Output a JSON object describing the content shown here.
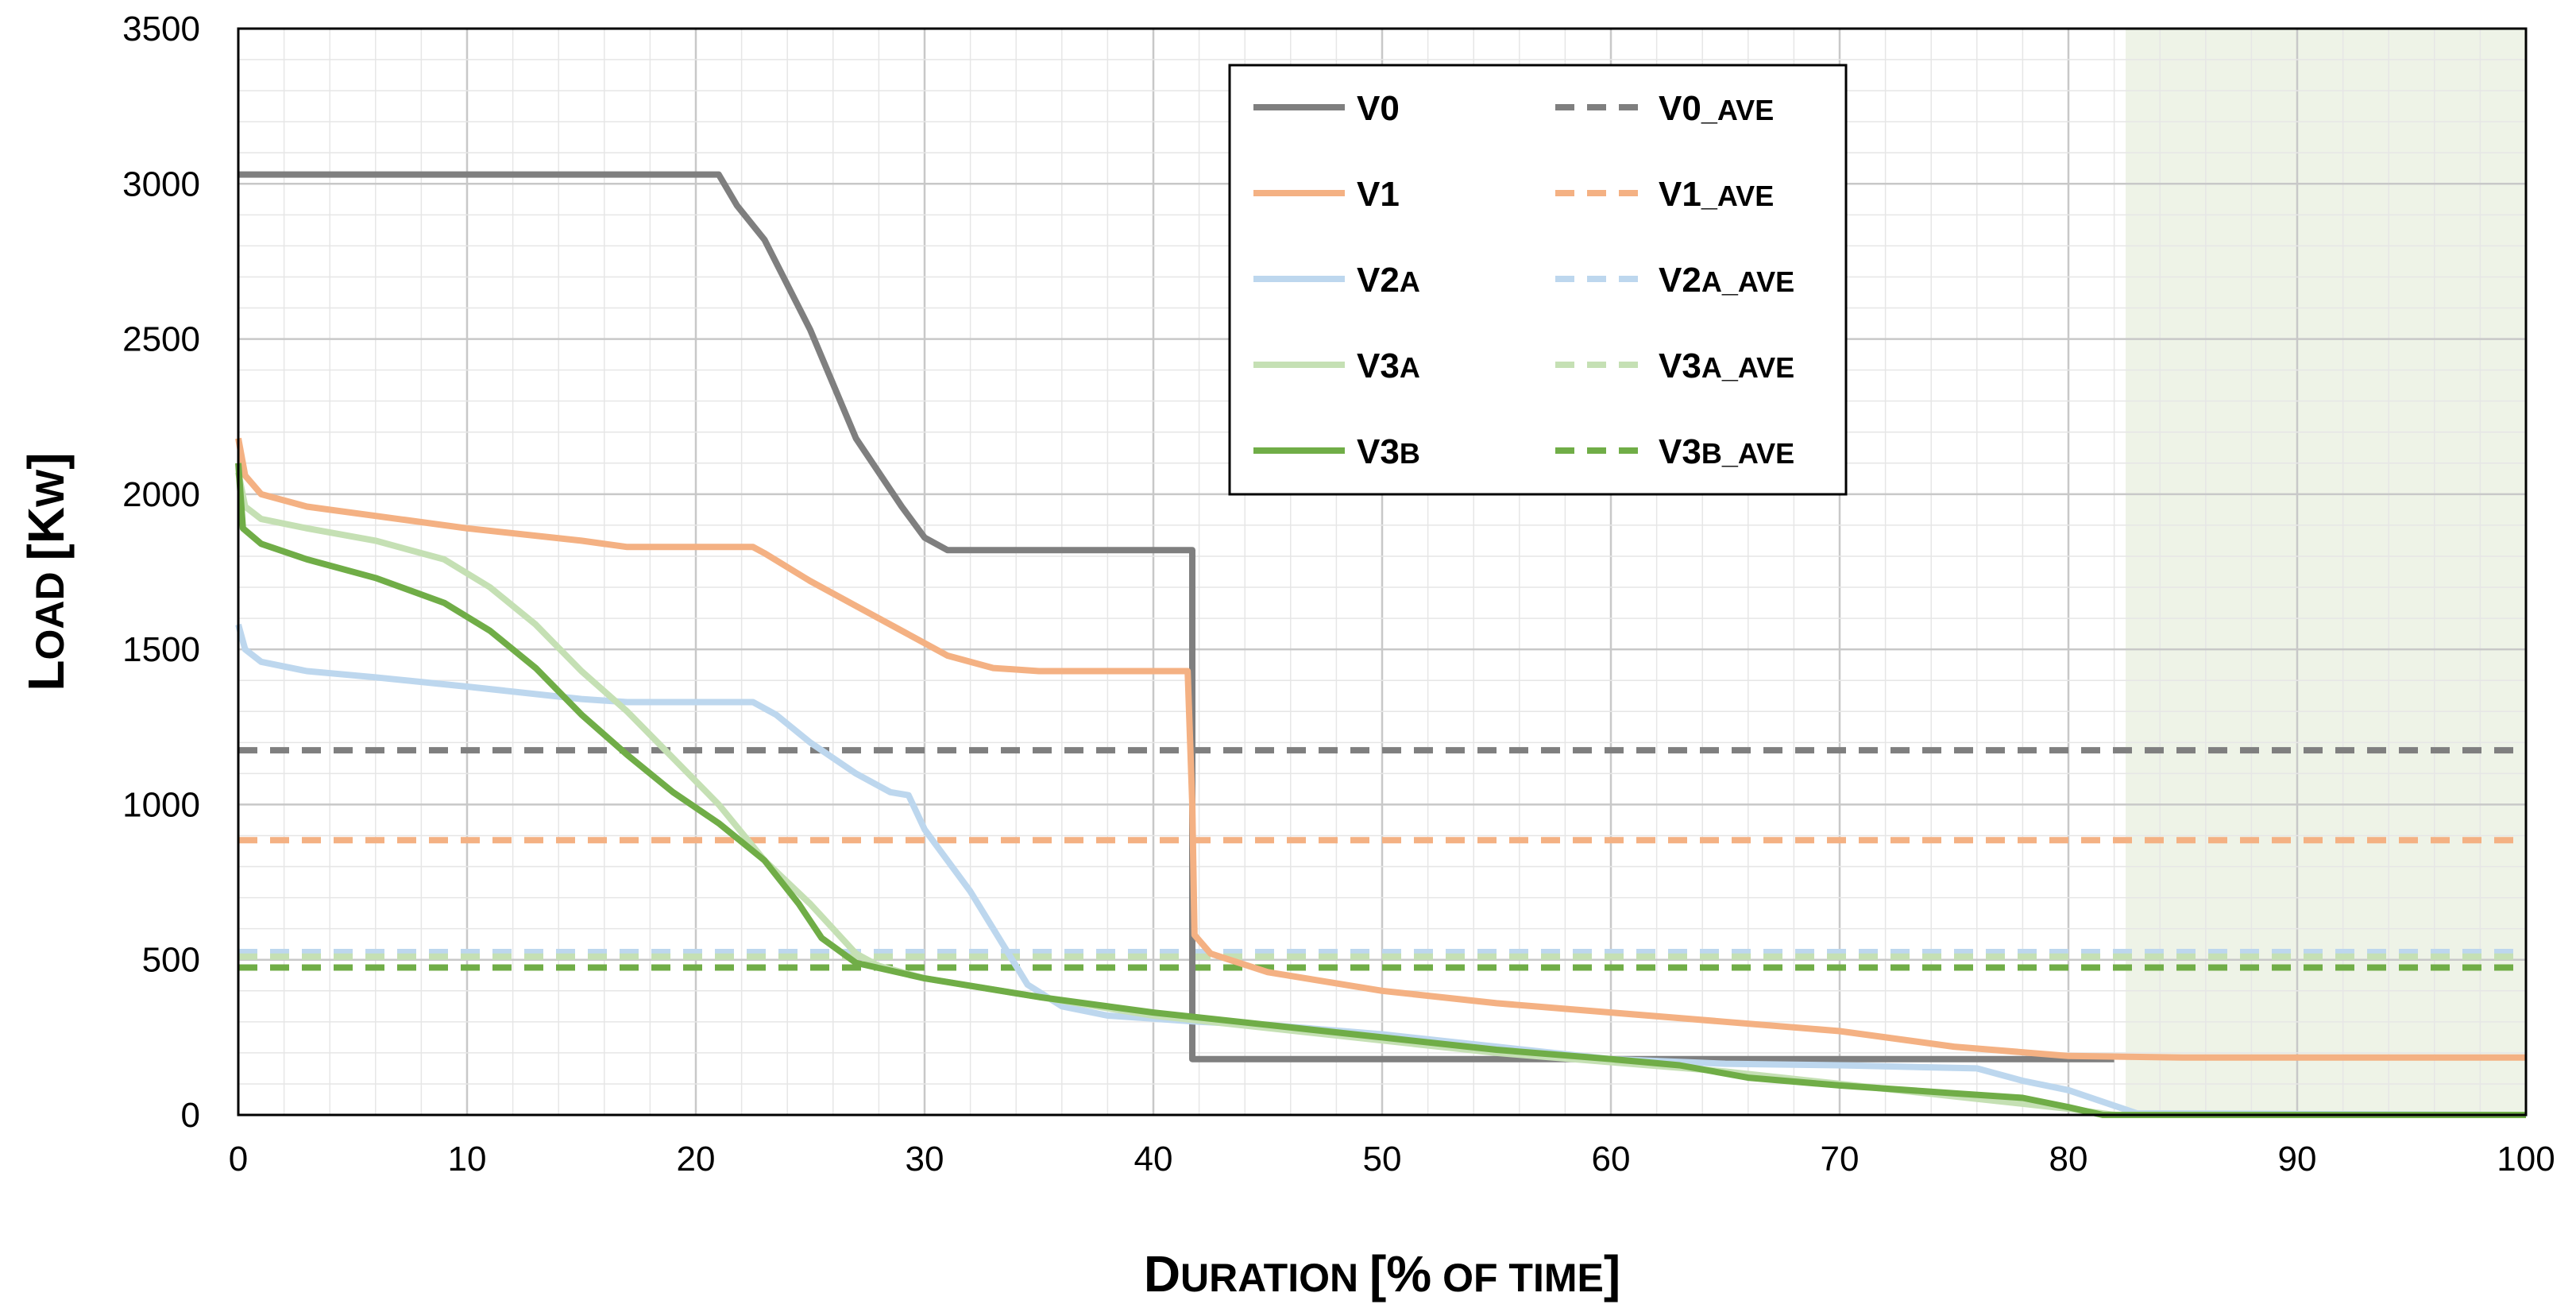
{
  "chart_data": {
    "type": "line",
    "title": "",
    "xlabel_main": "Duration",
    "xlabel_rest": "[% of time]",
    "ylabel_main": "Load",
    "ylabel_rest": "[kW]",
    "xlim": [
      0,
      100
    ],
    "ylim": [
      0,
      3500
    ],
    "x_ticks": [
      0,
      10,
      20,
      30,
      40,
      50,
      60,
      70,
      80,
      90,
      100
    ],
    "y_ticks": [
      0,
      500,
      1000,
      1500,
      2000,
      2500,
      3000,
      3500
    ],
    "grid": true,
    "legend_position": "top-center",
    "shaded_region": {
      "x_from": 82.5,
      "x_to": 100,
      "color": "#eef3e7"
    },
    "series": [
      {
        "name": "V0",
        "name_main": "V0",
        "name_sub": "",
        "style": "solid",
        "color": "#7f7f7f",
        "points": [
          [
            0,
            3030
          ],
          [
            21,
            3030
          ],
          [
            21.8,
            2930
          ],
          [
            23,
            2820
          ],
          [
            25,
            2530
          ],
          [
            27,
            2180
          ],
          [
            29,
            1960
          ],
          [
            30,
            1860
          ],
          [
            31,
            1820
          ],
          [
            41.7,
            1820
          ],
          [
            41.7,
            180
          ],
          [
            82,
            180
          ]
        ]
      },
      {
        "name": "V1",
        "name_main": "V1",
        "name_sub": "",
        "style": "solid",
        "color": "#f4b183",
        "points": [
          [
            0,
            2180
          ],
          [
            0.3,
            2060
          ],
          [
            1,
            2000
          ],
          [
            3,
            1960
          ],
          [
            6,
            1930
          ],
          [
            10,
            1890
          ],
          [
            15,
            1850
          ],
          [
            17,
            1830
          ],
          [
            22.5,
            1830
          ],
          [
            23,
            1810
          ],
          [
            25,
            1720
          ],
          [
            27,
            1640
          ],
          [
            29,
            1560
          ],
          [
            31,
            1480
          ],
          [
            33,
            1440
          ],
          [
            35,
            1430
          ],
          [
            41.5,
            1430
          ],
          [
            41.7,
            1000
          ],
          [
            41.8,
            580
          ],
          [
            42.5,
            520
          ],
          [
            45,
            460
          ],
          [
            50,
            400
          ],
          [
            55,
            360
          ],
          [
            60,
            330
          ],
          [
            65,
            300
          ],
          [
            70,
            270
          ],
          [
            75,
            220
          ],
          [
            80,
            190
          ],
          [
            85,
            185
          ],
          [
            100,
            185
          ]
        ]
      },
      {
        "name": "V2A",
        "name_main": "V2",
        "name_sub": "A",
        "style": "solid",
        "color": "#bdd7ee",
        "points": [
          [
            0,
            1580
          ],
          [
            0.3,
            1500
          ],
          [
            1,
            1460
          ],
          [
            3,
            1430
          ],
          [
            6,
            1410
          ],
          [
            10,
            1380
          ],
          [
            15,
            1340
          ],
          [
            17,
            1330
          ],
          [
            22.5,
            1330
          ],
          [
            23.5,
            1290
          ],
          [
            25,
            1200
          ],
          [
            27,
            1100
          ],
          [
            28.5,
            1040
          ],
          [
            29.3,
            1030
          ],
          [
            30,
            920
          ],
          [
            32,
            720
          ],
          [
            33.5,
            540
          ],
          [
            34.5,
            420
          ],
          [
            36,
            350
          ],
          [
            38,
            320
          ],
          [
            42,
            300
          ],
          [
            45,
            290
          ],
          [
            50,
            260
          ],
          [
            55,
            220
          ],
          [
            60,
            180
          ],
          [
            65,
            165
          ],
          [
            70,
            160
          ],
          [
            76,
            150
          ],
          [
            78,
            110
          ],
          [
            80,
            80
          ],
          [
            82,
            30
          ],
          [
            83,
            5
          ],
          [
            100,
            0
          ]
        ]
      },
      {
        "name": "V3A",
        "name_main": "V3",
        "name_sub": "A",
        "style": "solid",
        "color": "#c5e0b4",
        "points": [
          [
            0,
            2070
          ],
          [
            0.3,
            1960
          ],
          [
            1,
            1920
          ],
          [
            3,
            1890
          ],
          [
            6,
            1850
          ],
          [
            9,
            1790
          ],
          [
            11,
            1700
          ],
          [
            13,
            1580
          ],
          [
            15,
            1430
          ],
          [
            17,
            1300
          ],
          [
            19,
            1150
          ],
          [
            21,
            1000
          ],
          [
            23,
            820
          ],
          [
            25,
            680
          ],
          [
            27,
            520
          ],
          [
            28,
            480
          ],
          [
            30,
            440
          ],
          [
            35,
            380
          ],
          [
            40,
            320
          ],
          [
            45,
            280
          ],
          [
            50,
            240
          ],
          [
            55,
            200
          ],
          [
            60,
            170
          ],
          [
            65,
            140
          ],
          [
            70,
            100
          ],
          [
            75,
            60
          ],
          [
            80,
            20
          ],
          [
            82,
            0
          ],
          [
            100,
            0
          ]
        ]
      },
      {
        "name": "V3B",
        "name_main": "V3",
        "name_sub": "B",
        "style": "solid",
        "color": "#70ad47",
        "points": [
          [
            0,
            2100
          ],
          [
            0.2,
            1890
          ],
          [
            1,
            1840
          ],
          [
            3,
            1790
          ],
          [
            6,
            1730
          ],
          [
            9,
            1650
          ],
          [
            11,
            1560
          ],
          [
            13,
            1440
          ],
          [
            15,
            1290
          ],
          [
            17,
            1160
          ],
          [
            19,
            1040
          ],
          [
            21,
            940
          ],
          [
            23,
            820
          ],
          [
            24.5,
            680
          ],
          [
            25.5,
            570
          ],
          [
            27,
            490
          ],
          [
            30,
            440
          ],
          [
            35,
            380
          ],
          [
            40,
            330
          ],
          [
            45,
            290
          ],
          [
            50,
            250
          ],
          [
            55,
            210
          ],
          [
            60,
            180
          ],
          [
            63,
            160
          ],
          [
            66,
            120
          ],
          [
            70,
            95
          ],
          [
            75,
            70
          ],
          [
            78,
            55
          ],
          [
            80,
            25
          ],
          [
            81.5,
            0
          ],
          [
            100,
            0
          ]
        ]
      },
      {
        "name": "V0_AVE",
        "name_main": "V0",
        "name_sub": "_AVE",
        "style": "dashed",
        "color": "#7f7f7f",
        "points": [
          [
            0,
            1175
          ],
          [
            100,
            1175
          ]
        ]
      },
      {
        "name": "V1_AVE",
        "name_main": "V1",
        "name_sub": "_AVE",
        "style": "dashed",
        "color": "#f4b183",
        "points": [
          [
            0,
            885
          ],
          [
            100,
            885
          ]
        ]
      },
      {
        "name": "V2A_AVE",
        "name_main": "V2",
        "name_sub": "A_AVE",
        "style": "dashed",
        "color": "#bdd7ee",
        "points": [
          [
            0,
            525
          ],
          [
            100,
            525
          ]
        ]
      },
      {
        "name": "V3A_AVE",
        "name_main": "V3",
        "name_sub": "A_AVE",
        "style": "dashed",
        "color": "#c5e0b4",
        "points": [
          [
            0,
            510
          ],
          [
            100,
            510
          ]
        ]
      },
      {
        "name": "V3B_AVE",
        "name_main": "V3",
        "name_sub": "B_AVE",
        "style": "dashed",
        "color": "#70ad47",
        "points": [
          [
            0,
            475
          ],
          [
            100,
            475
          ]
        ]
      }
    ]
  }
}
